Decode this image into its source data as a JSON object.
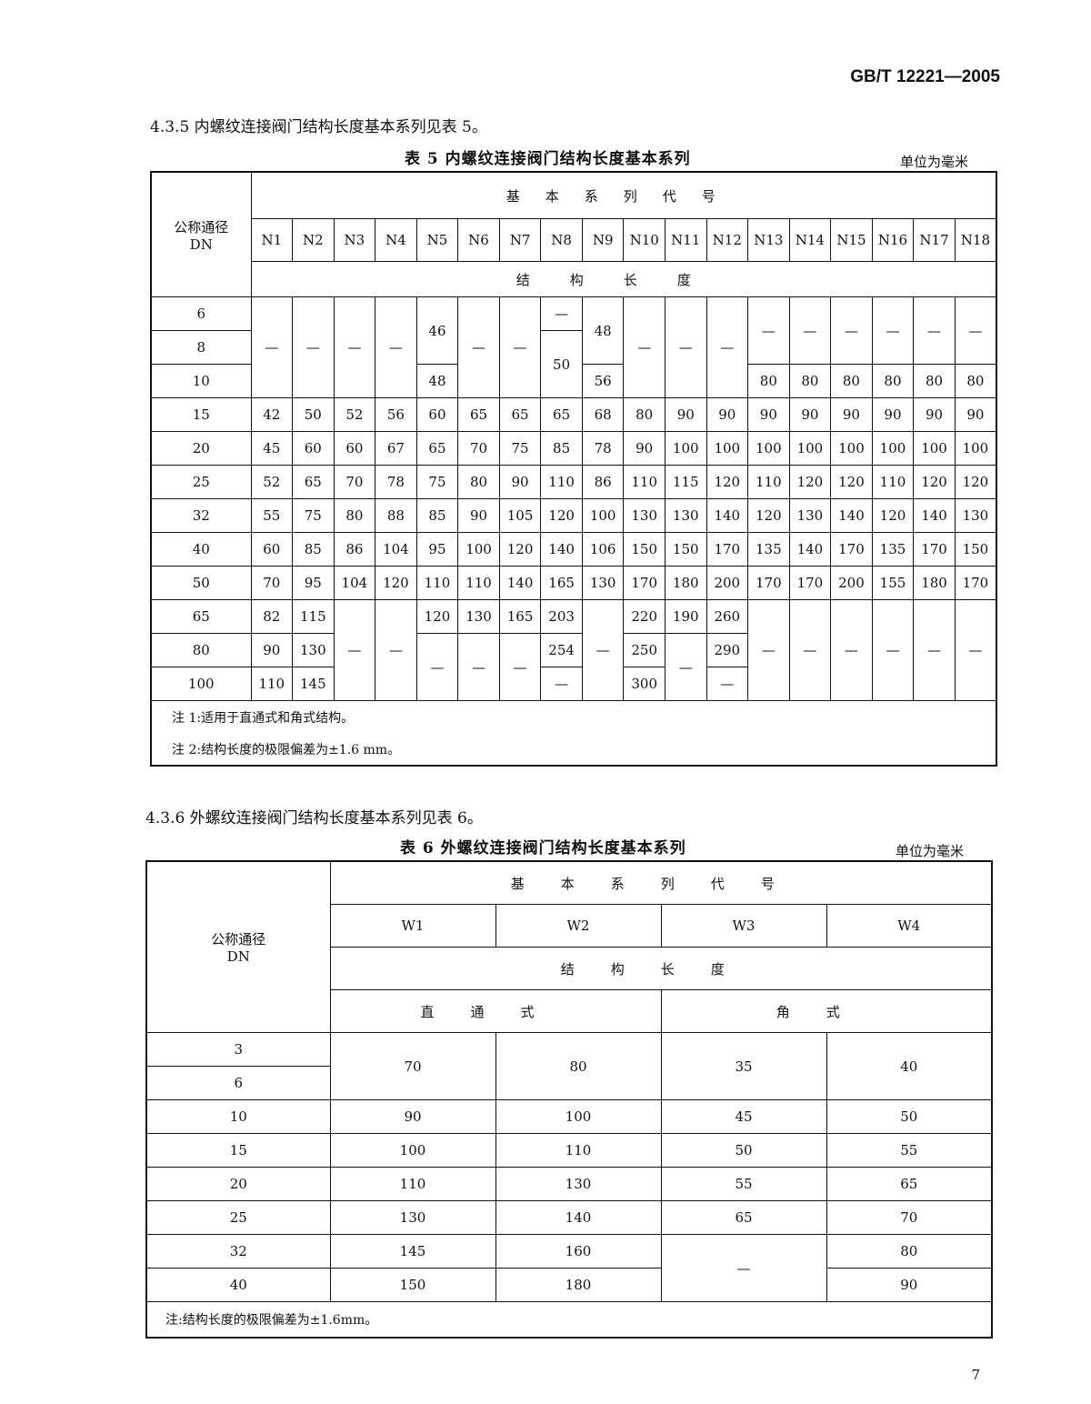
{
  "header": {
    "standard_code": "GB/T 12221—2005"
  },
  "section_435": {
    "text": "4.3.5  内螺纹连接阀门结构长度基本系列见表 5。"
  },
  "table5": {
    "caption": "表 5  内螺纹连接阀门结构长度基本系列",
    "unit": "单位为毫米",
    "dn_header": "公称通径",
    "dn_sub": "DN",
    "series_header": "基本系列代号",
    "length_header": "结构长度",
    "columns": [
      "N1",
      "N2",
      "N3",
      "N4",
      "N5",
      "N6",
      "N7",
      "N8",
      "N9",
      "N10",
      "N11",
      "N12",
      "N13",
      "N14",
      "N15",
      "N16",
      "N17",
      "N18"
    ],
    "rows": [
      {
        "dn": "6",
        "cells": [
          "—",
          "—",
          "—",
          "—",
          "46",
          "—",
          "—",
          "—",
          "48",
          "—",
          "—",
          "—",
          "—",
          "—",
          "—",
          "—",
          "—",
          "—"
        ]
      },
      {
        "dn": "8",
        "cells": [
          "50"
        ]
      },
      {
        "dn": "10",
        "cells": [
          "48",
          "56",
          "80",
          "80",
          "80",
          "80",
          "80",
          "80"
        ]
      },
      {
        "dn": "15",
        "cells": [
          "42",
          "50",
          "52",
          "56",
          "60",
          "65",
          "65",
          "65",
          "68",
          "80",
          "90",
          "90",
          "90",
          "90",
          "90",
          "90",
          "90",
          "90"
        ]
      },
      {
        "dn": "20",
        "cells": [
          "45",
          "60",
          "60",
          "67",
          "65",
          "70",
          "75",
          "85",
          "78",
          "90",
          "100",
          "100",
          "100",
          "100",
          "100",
          "100",
          "100",
          "100"
        ]
      },
      {
        "dn": "25",
        "cells": [
          "52",
          "65",
          "70",
          "78",
          "75",
          "80",
          "90",
          "110",
          "86",
          "110",
          "115",
          "120",
          "110",
          "120",
          "120",
          "110",
          "120",
          "120"
        ]
      },
      {
        "dn": "32",
        "cells": [
          "55",
          "75",
          "80",
          "88",
          "85",
          "90",
          "105",
          "120",
          "100",
          "130",
          "130",
          "140",
          "120",
          "130",
          "140",
          "120",
          "140",
          "130"
        ]
      },
      {
        "dn": "40",
        "cells": [
          "60",
          "85",
          "86",
          "104",
          "95",
          "100",
          "120",
          "140",
          "106",
          "150",
          "150",
          "170",
          "135",
          "140",
          "170",
          "135",
          "170",
          "150"
        ]
      },
      {
        "dn": "50",
        "cells": [
          "70",
          "95",
          "104",
          "120",
          "110",
          "110",
          "140",
          "165",
          "130",
          "170",
          "180",
          "200",
          "170",
          "170",
          "200",
          "155",
          "180",
          "170"
        ]
      },
      {
        "dn": "65",
        "cells": [
          "82",
          "115",
          "—",
          "—",
          "120",
          "130",
          "165",
          "203",
          "—",
          "220",
          "190",
          "260",
          "—",
          "—",
          "—",
          "—",
          "—",
          "—"
        ]
      },
      {
        "dn": "80",
        "cells": [
          "90",
          "130",
          "—",
          "—",
          "—",
          "254",
          "250",
          "—",
          "290"
        ]
      },
      {
        "dn": "100",
        "cells": [
          "110",
          "145",
          "—",
          "300",
          "—"
        ]
      }
    ],
    "notes": [
      "注 1:适用于直通式和角式结构。",
      "注 2:结构长度的极限偏差为±1.6 mm。"
    ]
  },
  "section_436": {
    "text": "4.3.6  外螺纹连接阀门结构长度基本系列见表 6。"
  },
  "table6": {
    "caption": "表 6  外螺纹连接阀门结构长度基本系列",
    "unit": "单位为毫米",
    "dn_header": "公称通径",
    "dn_sub": "DN",
    "series_header": "基本系列代号",
    "columns": [
      "W1",
      "W2",
      "W3",
      "W4"
    ],
    "length_header": "结构长度",
    "straight_header": "直通式",
    "angle_header": "角式",
    "rows": [
      {
        "dn": "3",
        "cells": [
          "70",
          "80",
          "35",
          "40"
        ]
      },
      {
        "dn": "6",
        "cells": []
      },
      {
        "dn": "10",
        "cells": [
          "90",
          "100",
          "45",
          "50"
        ]
      },
      {
        "dn": "15",
        "cells": [
          "100",
          "110",
          "50",
          "55"
        ]
      },
      {
        "dn": "20",
        "cells": [
          "110",
          "130",
          "55",
          "65"
        ]
      },
      {
        "dn": "25",
        "cells": [
          "130",
          "140",
          "65",
          "70"
        ]
      },
      {
        "dn": "32",
        "cells": [
          "145",
          "160",
          "—",
          "80"
        ]
      },
      {
        "dn": "40",
        "cells": [
          "150",
          "180",
          "90"
        ]
      }
    ],
    "note": "注:结构长度的极限偏差为±1.6mm。"
  },
  "page_number": "7"
}
